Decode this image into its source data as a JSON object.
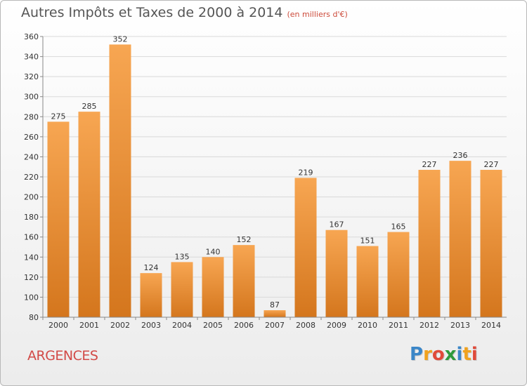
{
  "title": "Autres Impôts et Taxes de 2000 à 2014",
  "subtitle": "(en milliers d'€)",
  "commune": "ARGENCES",
  "logo": {
    "text": "Proxiti",
    "letters": [
      {
        "char": "P",
        "color": "#3a86c8"
      },
      {
        "char": "r",
        "color": "#f0a21e"
      },
      {
        "char": "o",
        "color": "#e04a3a"
      },
      {
        "char": "x",
        "color": "#2e9a3c"
      },
      {
        "char": "i",
        "color": "#3a86c8"
      },
      {
        "char": "t",
        "color": "#f0a21e"
      },
      {
        "char": "i",
        "color": "#e04a3a"
      }
    ]
  },
  "colors": {
    "bar_top": "#f7a652",
    "bar_bottom": "#d4761d",
    "grid": "#d9d9d9",
    "axis_text": "#333333"
  },
  "chart_data": {
    "type": "bar",
    "categories": [
      "2000",
      "2001",
      "2002",
      "2003",
      "2004",
      "2005",
      "2006",
      "2007",
      "2008",
      "2009",
      "2010",
      "2011",
      "2012",
      "2013",
      "2014"
    ],
    "values": [
      275,
      285,
      352,
      124,
      135,
      140,
      152,
      87,
      219,
      167,
      151,
      165,
      227,
      236,
      227
    ],
    "ylim": [
      80,
      360
    ],
    "yticks": [
      80,
      100,
      120,
      140,
      160,
      180,
      200,
      220,
      240,
      260,
      280,
      300,
      320,
      340,
      360
    ],
    "grid": true
  }
}
